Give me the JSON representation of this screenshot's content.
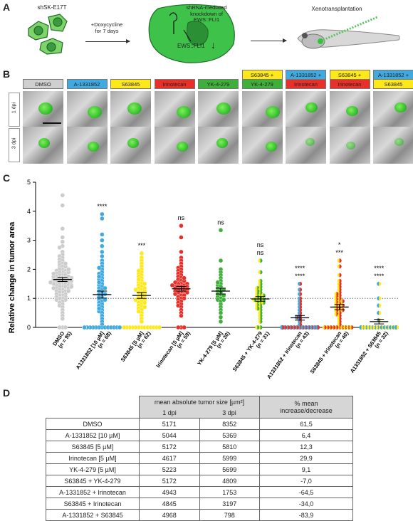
{
  "panelA": {
    "letter": "A",
    "cell_line": "shSK-E17T",
    "treatment": "+Doxycycline\nfor 7 days",
    "knockdown": "shRNA-mediated\nknockdown of\nEWS::FLI1",
    "gene_label": "EWS::FLI1",
    "down_arrow": "↓",
    "xeno": "Xenotransplantation"
  },
  "panelB": {
    "letter": "B",
    "rows": [
      "1 dpi",
      "3 dpi"
    ],
    "tags": [
      {
        "top": "DMSO",
        "top_color": "#cfcfcf",
        "bottom": "",
        "bottom_color": ""
      },
      {
        "top": "A-1331852",
        "top_color": "#3fa9e0",
        "bottom": "",
        "bottom_color": ""
      },
      {
        "top": "S63845",
        "top_color": "#ffe81a",
        "bottom": "",
        "bottom_color": ""
      },
      {
        "top": "Irinotecan",
        "top_color": "#e8302b",
        "bottom": "",
        "bottom_color": ""
      },
      {
        "top": "YK-4-279",
        "top_color": "#3fae3a",
        "bottom": "",
        "bottom_color": ""
      },
      {
        "top": "S63845 +",
        "top_color": "#ffe81a",
        "bottom": "YK-4-279",
        "bottom_color": "#3fae3a"
      },
      {
        "top": "A-1331852 +",
        "top_color": "#3fa9e0",
        "bottom": "Irinotecan",
        "bottom_color": "#e8302b"
      },
      {
        "top": "S63845 +",
        "top_color": "#ffe81a",
        "bottom": "Irinotecan",
        "bottom_color": "#e8302b"
      },
      {
        "top": "A-1331852 +",
        "top_color": "#3fa9e0",
        "bottom": "S63845",
        "bottom_color": "#ffe81a"
      }
    ]
  },
  "panelC": {
    "letter": "C"
  },
  "chart_data": {
    "type": "scatter",
    "ylabel": "Relative change in tumor area",
    "ylim": [
      0,
      5
    ],
    "yticks": [
      "0",
      "1",
      "2",
      "3",
      "4",
      "5"
    ],
    "reference_line": 1,
    "groups": [
      {
        "label": "DMSO",
        "n": "(n = 95)",
        "mean": 1.65,
        "sem": 0.07,
        "colors": [
          "#cccccc"
        ],
        "sig": [
          "",
          ""
        ],
        "values": [
          4.55,
          4.2,
          3.4,
          3.1,
          2.95,
          2.8,
          2.75,
          2.6,
          2.5,
          2.45,
          2.4,
          2.35,
          2.3,
          2.25,
          2.2,
          2.15,
          2.1,
          2.05,
          2.0,
          2.0,
          1.95,
          1.95,
          1.9,
          1.9,
          1.85,
          1.85,
          1.8,
          1.8,
          1.8,
          1.75,
          1.75,
          1.7,
          1.7,
          1.7,
          1.65,
          1.65,
          1.65,
          1.6,
          1.6,
          1.6,
          1.55,
          1.55,
          1.55,
          1.5,
          1.5,
          1.5,
          1.45,
          1.45,
          1.4,
          1.4,
          1.4,
          1.35,
          1.35,
          1.3,
          1.3,
          1.25,
          1.25,
          1.2,
          1.2,
          1.15,
          1.1,
          1.1,
          1.05,
          1.0,
          1.0,
          0.95,
          0.9,
          0.85,
          0.8,
          0.75,
          0.7,
          0.6,
          0.5,
          0.4,
          0.3,
          0.0,
          0.0,
          0.0,
          2.1,
          1.9,
          1.75,
          1.6,
          1.5,
          1.45,
          1.35,
          1.25,
          1.15,
          1.05,
          0.95,
          2.2,
          2.0,
          1.85,
          1.7,
          1.55,
          1.4
        ]
      },
      {
        "label": "A1331852 [10 µM]",
        "n": "(n = 68)",
        "mean": 1.13,
        "sem": 0.12,
        "colors": [
          "#3fa9e0"
        ],
        "sig": [
          "****",
          ""
        ],
        "values": [
          3.9,
          3.75,
          3.2,
          3.0,
          2.8,
          2.6,
          2.45,
          2.3,
          2.2,
          2.1,
          2.0,
          1.9,
          1.85,
          1.8,
          1.7,
          1.65,
          1.6,
          1.5,
          1.45,
          1.4,
          1.35,
          1.3,
          1.25,
          1.2,
          1.15,
          1.1,
          1.05,
          1.0,
          0.95,
          0.9,
          0.85,
          0.8,
          0.75,
          0.7,
          0.6,
          0.55,
          0.5,
          0.4,
          0.3,
          0.2,
          0.1,
          0,
          0,
          0,
          0,
          0,
          0,
          0,
          0,
          0,
          0,
          0,
          0,
          0,
          0,
          0,
          0,
          0,
          0,
          0,
          0,
          2.05,
          1.75,
          1.55,
          1.35,
          1.15,
          0.95,
          0.65
        ]
      },
      {
        "label": "S63845 [5 µM]",
        "n": "(n = 62)",
        "mean": 1.1,
        "sem": 0.1,
        "colors": [
          "#ffe81a"
        ],
        "sig": [
          "***",
          ""
        ],
        "values": [
          2.55,
          2.4,
          2.3,
          2.2,
          2.1,
          2.0,
          1.9,
          1.85,
          1.8,
          1.75,
          1.7,
          1.6,
          1.55,
          1.5,
          1.45,
          1.4,
          1.35,
          1.3,
          1.25,
          1.2,
          1.2,
          1.15,
          1.1,
          1.05,
          1.0,
          1.0,
          0.95,
          0.9,
          0.85,
          0.8,
          0.75,
          0.7,
          0.65,
          0.6,
          0.5,
          0.4,
          0.3,
          0.2,
          0,
          0,
          0,
          0,
          0,
          0,
          0,
          0,
          0,
          0,
          0,
          0,
          0,
          1.95,
          1.65,
          1.5,
          1.35,
          1.25,
          1.1,
          0.95,
          0.85,
          0.7,
          0.55,
          1.3
        ]
      },
      {
        "label": "Irinotecan [5 µM]",
        "n": "(n = 59)",
        "mean": 1.33,
        "sem": 0.08,
        "colors": [
          "#e8302b"
        ],
        "sig": [
          "ns",
          ""
        ],
        "values": [
          3.5,
          3.1,
          2.6,
          2.4,
          2.3,
          2.2,
          2.1,
          2.05,
          2.0,
          1.95,
          1.9,
          1.85,
          1.8,
          1.75,
          1.7,
          1.65,
          1.6,
          1.55,
          1.5,
          1.5,
          1.45,
          1.45,
          1.4,
          1.4,
          1.35,
          1.35,
          1.3,
          1.3,
          1.25,
          1.25,
          1.2,
          1.2,
          1.15,
          1.15,
          1.1,
          1.05,
          1.0,
          0.95,
          0.9,
          0.85,
          0.8,
          0.75,
          0.7,
          0.6,
          0.5,
          0.4,
          0,
          0,
          0,
          1.6,
          1.5,
          1.4,
          1.3,
          1.2,
          1.1,
          1.0,
          1.7,
          1.55,
          1.45
        ]
      },
      {
        "label": "YK-4-279 [5 µM]",
        "n": "(n = 30)",
        "mean": 1.25,
        "sem": 0.1,
        "colors": [
          "#3fae3a"
        ],
        "sig": [
          "ns",
          ""
        ],
        "values": [
          3.35,
          2.3,
          2.0,
          1.9,
          1.8,
          1.7,
          1.6,
          1.5,
          1.45,
          1.4,
          1.35,
          1.3,
          1.25,
          1.2,
          1.15,
          1.1,
          1.05,
          1.0,
          0.95,
          0.9,
          0.8,
          0.7,
          0.6,
          0.5,
          0.35,
          0.2,
          1.55,
          1.3,
          1.1,
          0.95
        ]
      },
      {
        "label": "S63845 + YK-4-279",
        "n": "(n = 31)",
        "mean": 0.98,
        "sem": 0.08,
        "colors": [
          "#ffe81a",
          "#3fae3a"
        ],
        "sig": [
          "ns",
          "ns"
        ],
        "values": [
          2.3,
          1.9,
          1.6,
          1.5,
          1.4,
          1.35,
          1.3,
          1.2,
          1.15,
          1.1,
          1.05,
          1.0,
          1.0,
          0.95,
          0.9,
          0.85,
          0.8,
          0.75,
          0.7,
          0.6,
          0.5,
          0.4,
          0.3,
          0.2,
          0,
          0,
          1.25,
          1.1,
          0.95,
          0.85,
          0.65
        ]
      },
      {
        "label": "A1331852 + Irinotecan",
        "n": "(n = 43)",
        "mean": 0.33,
        "sem": 0.08,
        "colors": [
          "#3fa9e0",
          "#e8302b"
        ],
        "sig": [
          "****",
          "****"
        ],
        "values": [
          1.5,
          1.3,
          1.15,
          1.0,
          0.9,
          0.8,
          0.7,
          0.6,
          0.5,
          0.4,
          0.35,
          0.3,
          0.2,
          0.1,
          0,
          0,
          0,
          0,
          0,
          0,
          0,
          0,
          0,
          0,
          0,
          0,
          0,
          0,
          0,
          0,
          0,
          0,
          0,
          0,
          0,
          0,
          0,
          0,
          0,
          0,
          0,
          0,
          0
        ]
      },
      {
        "label": "S63845 + Irinotecan",
        "n": "(n = 40)",
        "mean": 0.7,
        "sem": 0.09,
        "colors": [
          "#ffe81a",
          "#e8302b"
        ],
        "sig": [
          "*",
          "***"
        ],
        "values": [
          2.3,
          2.1,
          1.8,
          1.6,
          1.5,
          1.4,
          1.3,
          1.2,
          1.1,
          1.05,
          1.0,
          0.95,
          0.9,
          0.85,
          0.8,
          0.75,
          0.7,
          0.65,
          0.6,
          0.55,
          0.5,
          0.45,
          0.4,
          0.3,
          0.2,
          0.1,
          0,
          0,
          0,
          0,
          0,
          0,
          0,
          0,
          0,
          0,
          1.15,
          0.9,
          0.75,
          0.6
        ]
      },
      {
        "label": "A1331852 + S63845",
        "n": "(n = 32)",
        "mean": 0.2,
        "sem": 0.08,
        "colors": [
          "#3fa9e0",
          "#ffe81a"
        ],
        "sig": [
          "****",
          "****"
        ],
        "values": [
          1.5,
          1.0,
          0.75,
          0.5,
          0.25,
          0,
          0,
          0,
          0,
          0,
          0,
          0,
          0,
          0,
          0,
          0,
          0,
          0,
          0,
          0,
          0,
          0,
          0,
          0,
          0,
          0,
          0,
          0,
          0,
          0,
          0,
          0
        ]
      }
    ]
  },
  "panelD": {
    "letter": "D",
    "header_group": "mean absolute tumor size [µm²]",
    "col1": "1 dpi",
    "col2": "3 dpi",
    "col3": "% mean\nincrease/decrease",
    "rows": [
      [
        "DMSO",
        "5171",
        "8352",
        "61,5"
      ],
      [
        "A-1331852 [10 µM]",
        "5044",
        "5369",
        "6,4"
      ],
      [
        "S63845 [5 µM]",
        "5172",
        "5810",
        "12,3"
      ],
      [
        "Irinotecan [5 µM]",
        "4617",
        "5999",
        "29,9"
      ],
      [
        "YK-4-279 [5 µM]",
        "5223",
        "5699",
        "9,1"
      ],
      [
        "S63845 + YK-4-279",
        "5172",
        "4809",
        "-7,0"
      ],
      [
        "A-1331852 + Irinotecan",
        "4943",
        "1753",
        "-64,5"
      ],
      [
        "S63845 + Irinotecan",
        "4845",
        "3197",
        "-34,0"
      ],
      [
        "A-1331852 + S63845",
        "4968",
        "798",
        "-83,9"
      ]
    ]
  }
}
